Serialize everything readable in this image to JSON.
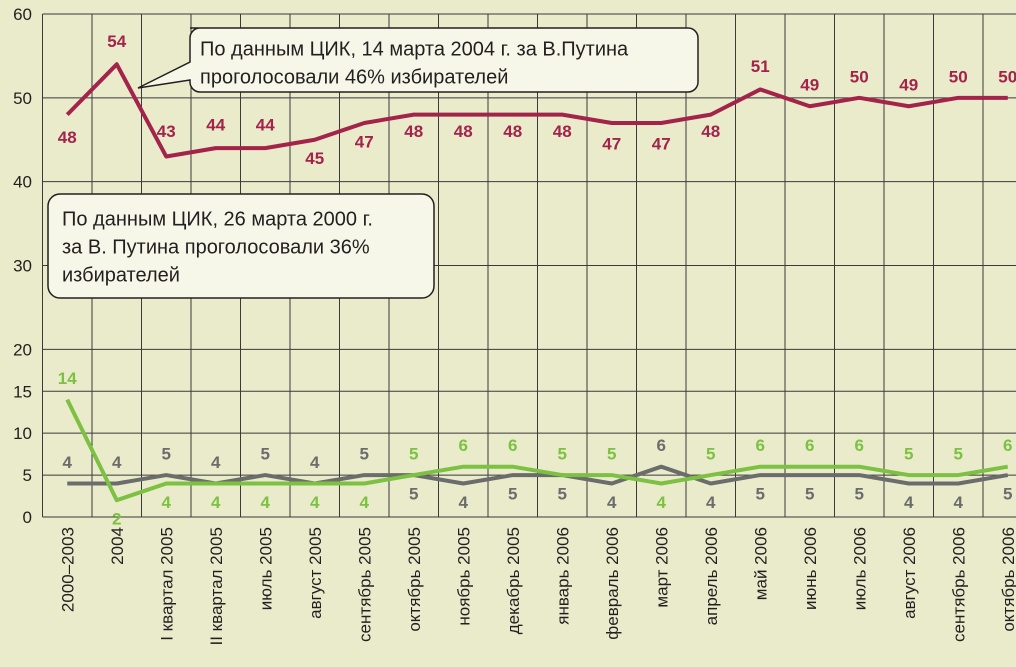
{
  "chart_data": {
    "type": "line",
    "categories": [
      "2000–2003",
      "2004",
      "I квартал 2005",
      "II квартал 2005",
      "июль 2005",
      "август 2005",
      "сентябрь 2005",
      "октябрь 2005",
      "ноябрь 2005",
      "декабрь 2005",
      "январь 2006",
      "февраль 2006",
      "март 2006",
      "апрель 2006",
      "май 2006",
      "июнь 2006",
      "июль 2006",
      "август 2006",
      "сентябрь 2006",
      "октябрь 2006"
    ],
    "series": [
      {
        "color": "#a3234b",
        "values": [
          48,
          54,
          43,
          44,
          44,
          45,
          47,
          48,
          48,
          48,
          48,
          47,
          47,
          48,
          51,
          49,
          50,
          49,
          50,
          50
        ]
      },
      {
        "color": "#6b6c6c",
        "values": [
          4,
          4,
          5,
          4,
          5,
          4,
          5,
          5,
          4,
          5,
          5,
          4,
          6,
          4,
          5,
          5,
          5,
          4,
          4,
          5
        ]
      },
      {
        "color": "#7cc142",
        "values": [
          14,
          2,
          4,
          4,
          4,
          4,
          4,
          5,
          6,
          6,
          5,
          5,
          4,
          5,
          6,
          6,
          6,
          5,
          5,
          6
        ]
      }
    ],
    "ylim": [
      0,
      60
    ],
    "yticks": [
      0,
      5,
      10,
      15,
      20,
      30,
      40,
      50,
      60
    ],
    "grid": true,
    "annotations": [
      [
        "По данным ЦИК, 14 марта 2004 г. за В.Путина",
        "проголосовали 46% избирателей"
      ],
      [
        "По данным ЦИК, 26 марта 2000 г.",
        "за В. Путина проголосовали 36%",
        "избирателей"
      ]
    ]
  }
}
